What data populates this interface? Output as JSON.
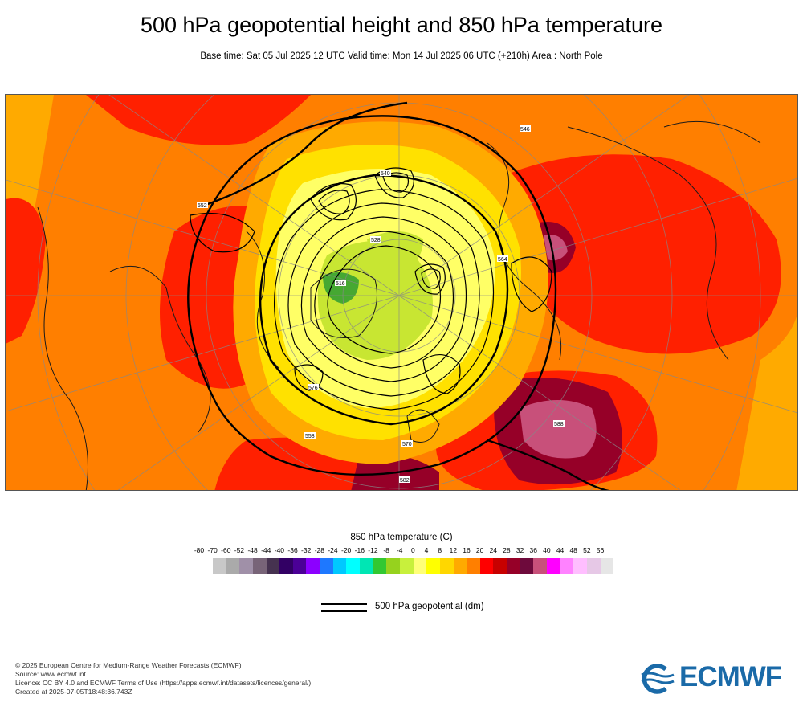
{
  "header": {
    "title": "500 hPa geopotential height and 850 hPa temperature",
    "subtitle": "Base time: Sat 05 Jul 2025 12 UTC Valid time: Mon 14 Jul 2025 06 UTC (+210h) Area : North Pole"
  },
  "map": {
    "projection": "polar stereographic",
    "area": "North Pole",
    "contour_labels": [
      "552",
      "540",
      "576",
      "564",
      "528",
      "516",
      "582",
      "588",
      "546",
      "558",
      "570"
    ],
    "colors": {
      "background": "#ff7f00",
      "warm": "#ff2000",
      "hot": "#cc0022",
      "very_hot": "#7a0030",
      "extreme": "#c83c78",
      "mild": "#ffaa00",
      "cool": "#ffe100",
      "cold": "#ffff66",
      "very_cold": "#c8e632",
      "coldest": "#46a832",
      "contour": "#000000",
      "coast": "#1a1a1a",
      "grid": "#888888"
    }
  },
  "legend": {
    "temperature_title": "850 hPa temperature (C)",
    "tick_labels": [
      "-80",
      "-70",
      "-60",
      "-52",
      "-48",
      "-44",
      "-40",
      "-36",
      "-32",
      "-28",
      "-24",
      "-20",
      "-16",
      "-12",
      "-8",
      "-4",
      "0",
      "4",
      "8",
      "12",
      "16",
      "20",
      "24",
      "28",
      "32",
      "36",
      "40",
      "44",
      "48",
      "52",
      "56"
    ],
    "swatch_colors": [
      "#e6e6e6",
      "#c8c8c8",
      "#aaaaaa",
      "#a090a8",
      "#786478",
      "#463250",
      "#320064",
      "#4b0096",
      "#8c00ff",
      "#1e78ff",
      "#00c8ff",
      "#00ffff",
      "#00e6b4",
      "#32c832",
      "#96d21e",
      "#c8f03c",
      "#ffff78",
      "#ffff00",
      "#ffd700",
      "#ffaa00",
      "#ff7f00",
      "#ff0000",
      "#c80000",
      "#960028",
      "#6e0a3c",
      "#c8507a",
      "#ff00ff",
      "#ff82ff",
      "#ffbeff",
      "#e6c8e6",
      "#e6e6e6"
    ],
    "geopotential_label": "500 hPa geopotential (dm)"
  },
  "footer": {
    "line1": "© 2025 European Centre for Medium-Range Weather Forecasts (ECMWF)",
    "line2": "Source: www.ecmwf.int",
    "line3": "Licence: CC BY 4.0 and ECMWF Terms of Use (https://apps.ecmwf.int/datasets/licences/general/)",
    "line4": "Created at 2025-07-05T18:48:36.743Z",
    "logo_text": "ECMWF",
    "logo_color": "#1a6aa8"
  }
}
